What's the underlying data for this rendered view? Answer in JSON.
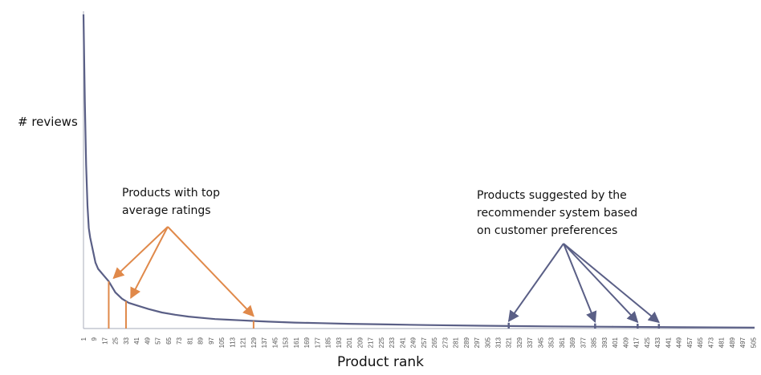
{
  "chart_data": {
    "type": "line",
    "title": "",
    "xlabel": "Product rank",
    "ylabel": "# reviews",
    "x_tick_labels": [
      1,
      9,
      17,
      25,
      33,
      41,
      49,
      57,
      65,
      73,
      81,
      89,
      97,
      105,
      113,
      121,
      129,
      137,
      145,
      153,
      161,
      169,
      177,
      185,
      193,
      201,
      209,
      217,
      225,
      233,
      241,
      249,
      257,
      265,
      273,
      281,
      289,
      297,
      305,
      313,
      321,
      329,
      337,
      345,
      353,
      361,
      369,
      377,
      385,
      393,
      401,
      409,
      417,
      425,
      433,
      441,
      449,
      457,
      465,
      473,
      481,
      489,
      497,
      505
    ],
    "xlim": [
      1,
      506
    ],
    "y_tick_labels_shown": false,
    "series": [
      {
        "x": [
          1,
          2,
          3,
          4,
          5,
          6,
          8,
          10,
          12,
          15,
          20,
          25,
          30,
          35,
          40,
          50,
          60,
          70,
          80,
          90,
          100,
          110,
          120,
          130,
          140,
          160,
          180,
          200,
          230,
          260,
          300,
          350,
          400,
          450,
          506
        ],
        "values": [
          1.0,
          0.72,
          0.52,
          0.39,
          0.32,
          0.29,
          0.25,
          0.21,
          0.19,
          0.175,
          0.15,
          0.115,
          0.095,
          0.082,
          0.075,
          0.062,
          0.051,
          0.044,
          0.038,
          0.034,
          0.03,
          0.028,
          0.026,
          0.024,
          0.022,
          0.019,
          0.017,
          0.015,
          0.013,
          0.011,
          0.009,
          0.007,
          0.0055,
          0.004,
          0.003
        ]
      }
    ],
    "highlights": {
      "top_average_ratings": [
        20,
        33,
        129
      ],
      "recommender_suggestions": [
        321,
        386,
        418,
        434
      ]
    },
    "colors": {
      "curve": "#5a5f86",
      "top_ratings": "#e0894a",
      "recommender": "#5a5f86"
    }
  },
  "annotations": {
    "top_ratings_text": "Products with top\naverage ratings",
    "recommender_text": "Products suggested by the\nrecommender system based\non customer preferences"
  }
}
